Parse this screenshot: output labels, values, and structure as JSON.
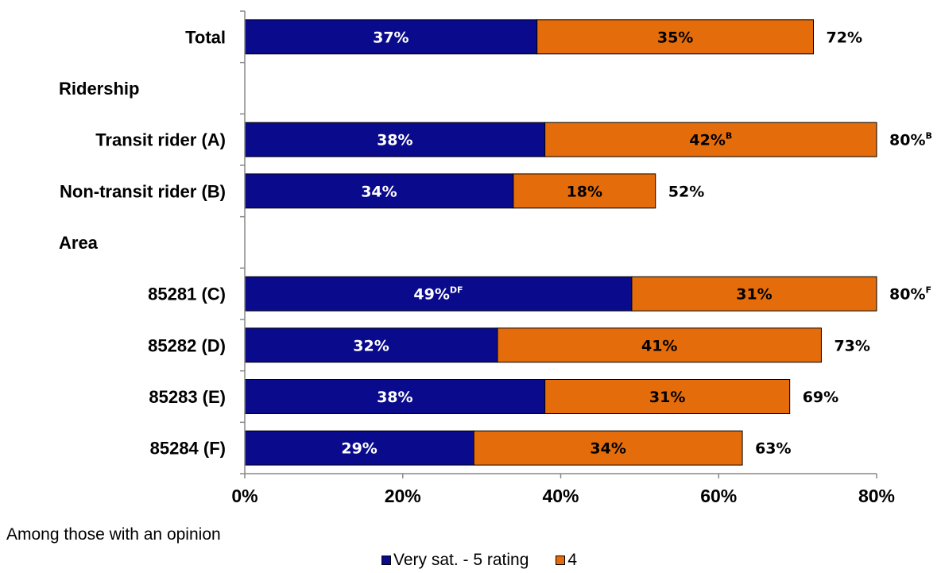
{
  "chart_data": {
    "type": "bar",
    "orientation": "horizontal",
    "stacked": true,
    "categories": [
      "Total",
      "Ridership",
      "Transit rider (A)",
      "Non-transit rider (B)",
      "Area",
      "85281 (C)",
      "85282 (D)",
      "85283 (E)",
      "85284 (F)"
    ],
    "header_rows": [
      "Ridership",
      "Area"
    ],
    "series": [
      {
        "name": "Very sat. - 5 rating",
        "color": "#0a0a8c",
        "values": [
          37,
          null,
          38,
          34,
          null,
          49,
          32,
          38,
          29
        ],
        "labels": [
          "37%",
          null,
          "38%",
          "34%",
          null,
          "49%",
          "32%",
          "38%",
          "29%"
        ],
        "label_superscripts": [
          "",
          null,
          "",
          "",
          null,
          "DF",
          "",
          "",
          ""
        ]
      },
      {
        "name": "4",
        "color": "#e46c0a",
        "values": [
          35,
          null,
          42,
          18,
          null,
          31,
          41,
          31,
          34
        ],
        "labels": [
          "35%",
          null,
          "42%",
          "18%",
          null,
          "31%",
          "41%",
          "31%",
          "34%"
        ],
        "label_superscripts": [
          "",
          null,
          "B",
          "",
          null,
          "",
          "",
          "",
          ""
        ]
      }
    ],
    "totals": [
      72,
      null,
      80,
      52,
      null,
      80,
      73,
      69,
      63
    ],
    "total_labels": [
      "72%",
      null,
      "80%",
      "52%",
      null,
      "80%",
      "73%",
      "69%",
      "63%"
    ],
    "total_superscripts": [
      "",
      null,
      "B",
      "",
      null,
      "F",
      "",
      "",
      ""
    ],
    "xlim": [
      0,
      80
    ],
    "x_ticks": [
      "0%",
      "20%",
      "40%",
      "60%",
      "80%"
    ],
    "legend_position": "bottom",
    "grid": false,
    "segment_label_colors": [
      "#ffffff",
      "#000000"
    ]
  },
  "note": "Among those with an opinion"
}
